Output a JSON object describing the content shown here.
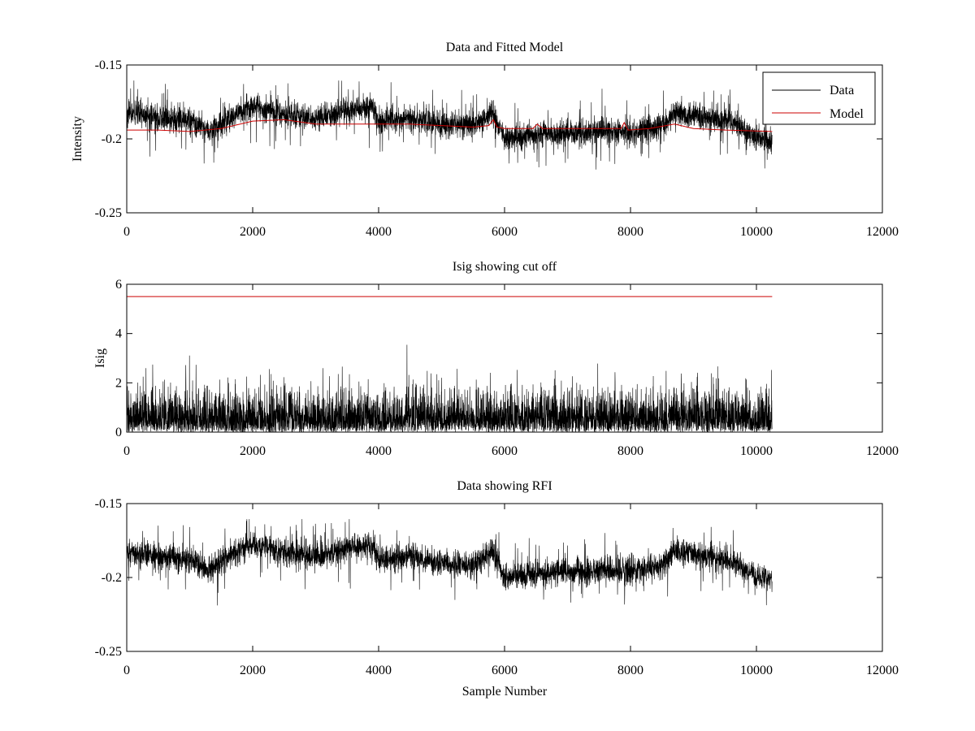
{
  "chart_data": [
    {
      "type": "line",
      "title": "Data and Fitted Model",
      "xlabel": "",
      "ylabel": "Intensity",
      "xlim": [
        0,
        12000
      ],
      "ylim": [
        -0.25,
        -0.15
      ],
      "y_reversed": true,
      "xticks": [
        0,
        2000,
        4000,
        6000,
        8000,
        10000,
        12000
      ],
      "yticks": [
        -0.15,
        -0.2,
        -0.25
      ],
      "legend": {
        "position": "top-right",
        "entries": [
          "Data",
          "Model"
        ]
      },
      "series": [
        {
          "name": "Data",
          "color": "#000000",
          "style": "noise",
          "n_samples": 10250,
          "baseline_points": [
            [
              0,
              -0.183
            ],
            [
              500,
              -0.186
            ],
            [
              1000,
              -0.188
            ],
            [
              1300,
              -0.195
            ],
            [
              1600,
              -0.186
            ],
            [
              2000,
              -0.178
            ],
            [
              2500,
              -0.183
            ],
            [
              3000,
              -0.186
            ],
            [
              3500,
              -0.181
            ],
            [
              3900,
              -0.178
            ],
            [
              4000,
              -0.188
            ],
            [
              4500,
              -0.186
            ],
            [
              5000,
              -0.19
            ],
            [
              5500,
              -0.191
            ],
            [
              5800,
              -0.182
            ],
            [
              6000,
              -0.2
            ],
            [
              6500,
              -0.197
            ],
            [
              7000,
              -0.196
            ],
            [
              7500,
              -0.195
            ],
            [
              8000,
              -0.196
            ],
            [
              8500,
              -0.191
            ],
            [
              8700,
              -0.182
            ],
            [
              9200,
              -0.186
            ],
            [
              9600,
              -0.189
            ],
            [
              10000,
              -0.199
            ],
            [
              10250,
              -0.201
            ]
          ],
          "spread": 0.008
        },
        {
          "name": "Model",
          "color": "#cc0000",
          "points": [
            [
              0,
              -0.194
            ],
            [
              500,
              -0.194
            ],
            [
              1000,
              -0.195
            ],
            [
              1500,
              -0.193
            ],
            [
              2000,
              -0.188
            ],
            [
              2500,
              -0.187
            ],
            [
              3000,
              -0.19
            ],
            [
              3500,
              -0.19
            ],
            [
              4000,
              -0.19
            ],
            [
              4500,
              -0.19
            ],
            [
              5000,
              -0.191
            ],
            [
              5500,
              -0.192
            ],
            [
              5750,
              -0.191
            ],
            [
              5820,
              -0.187
            ],
            [
              5880,
              -0.192
            ],
            [
              6000,
              -0.193
            ],
            [
              6450,
              -0.193
            ],
            [
              6520,
              -0.19
            ],
            [
              6600,
              -0.193
            ],
            [
              7000,
              -0.193
            ],
            [
              7500,
              -0.193
            ],
            [
              7850,
              -0.193
            ],
            [
              7900,
              -0.189
            ],
            [
              7960,
              -0.194
            ],
            [
              8300,
              -0.193
            ],
            [
              8700,
              -0.19
            ],
            [
              9000,
              -0.193
            ],
            [
              9500,
              -0.194
            ],
            [
              10250,
              -0.195
            ]
          ]
        }
      ]
    },
    {
      "type": "line",
      "title": "Isig showing cut off",
      "xlabel": "",
      "ylabel": "Isig",
      "xlim": [
        0,
        12000
      ],
      "ylim": [
        0,
        6
      ],
      "xticks": [
        0,
        2000,
        4000,
        6000,
        8000,
        10000,
        12000
      ],
      "yticks": [
        0,
        2,
        4,
        6
      ],
      "series": [
        {
          "name": "Isig",
          "color": "#000000",
          "style": "noise-positive",
          "n_samples": 10250,
          "typical": 0.8,
          "max_observed": 3.85
        },
        {
          "name": "Cut off",
          "color": "#cc0000",
          "points": [
            [
              0,
              5.5
            ],
            [
              10250,
              5.5
            ]
          ]
        }
      ]
    },
    {
      "type": "line",
      "title": "Data showing RFI",
      "xlabel": "Sample Number",
      "ylabel": "",
      "xlim": [
        0,
        12000
      ],
      "ylim": [
        -0.25,
        -0.15
      ],
      "y_reversed": true,
      "xticks": [
        0,
        2000,
        4000,
        6000,
        8000,
        10000,
        12000
      ],
      "yticks": [
        -0.15,
        -0.2,
        -0.25
      ],
      "series": [
        {
          "name": "Data",
          "color": "#000000",
          "style": "noise",
          "n_samples": 10250,
          "baseline_points": [
            [
              0,
              -0.183
            ],
            [
              500,
              -0.186
            ],
            [
              1000,
              -0.188
            ],
            [
              1300,
              -0.195
            ],
            [
              1600,
              -0.186
            ],
            [
              2000,
              -0.178
            ],
            [
              2500,
              -0.183
            ],
            [
              3000,
              -0.186
            ],
            [
              3500,
              -0.181
            ],
            [
              3900,
              -0.178
            ],
            [
              4000,
              -0.188
            ],
            [
              4500,
              -0.186
            ],
            [
              5000,
              -0.19
            ],
            [
              5500,
              -0.191
            ],
            [
              5800,
              -0.182
            ],
            [
              6000,
              -0.2
            ],
            [
              6500,
              -0.197
            ],
            [
              7000,
              -0.196
            ],
            [
              7500,
              -0.195
            ],
            [
              8000,
              -0.196
            ],
            [
              8500,
              -0.191
            ],
            [
              8700,
              -0.182
            ],
            [
              9200,
              -0.186
            ],
            [
              9600,
              -0.189
            ],
            [
              10000,
              -0.199
            ],
            [
              10250,
              -0.201
            ]
          ],
          "spread": 0.008
        }
      ]
    }
  ]
}
